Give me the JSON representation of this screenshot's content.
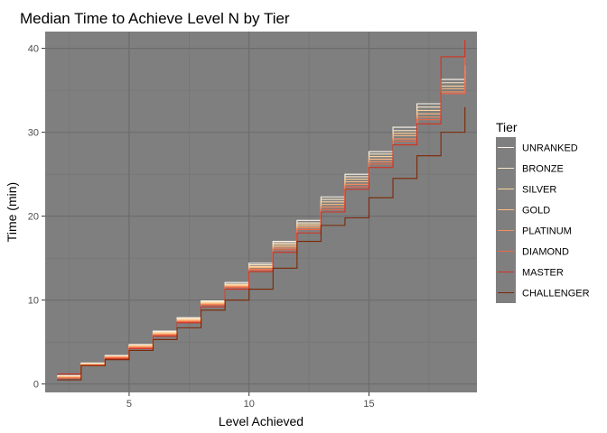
{
  "chart_data": {
    "type": "line",
    "subtype": "step",
    "title": "Median Time to Achieve Level N by Tier",
    "xlabel": "Level Achieved",
    "ylabel": "Time (min)",
    "xlim": [
      1.5,
      19.5
    ],
    "ylim": [
      -1,
      42
    ],
    "x_ticks": [
      5,
      10,
      15
    ],
    "y_ticks": [
      0,
      10,
      20,
      30,
      40
    ],
    "x_levels": [
      2,
      3,
      4,
      5,
      6,
      7,
      8,
      9,
      10,
      11,
      12,
      13,
      14,
      15,
      16,
      17,
      18,
      19
    ],
    "background": "#7f7f7f",
    "legend": {
      "title": "Tier",
      "position": "right"
    },
    "series": [
      {
        "name": "UNRANKED",
        "color": "#fff7ec",
        "values": [
          1.0,
          2.5,
          3.4,
          4.7,
          6.3,
          7.9,
          9.9,
          12.1,
          14.4,
          17.0,
          19.5,
          22.3,
          25.0,
          27.7,
          30.6,
          33.4,
          36.3,
          38.0
        ]
      },
      {
        "name": "BRONZE",
        "color": "#fee8c8",
        "values": [
          0.9,
          2.4,
          3.3,
          4.6,
          6.2,
          7.8,
          9.8,
          11.9,
          14.2,
          16.8,
          19.2,
          22.0,
          24.7,
          27.4,
          30.2,
          33.0,
          35.9,
          37.5
        ]
      },
      {
        "name": "SILVER",
        "color": "#fdd49e",
        "values": [
          0.9,
          2.4,
          3.3,
          4.6,
          6.1,
          7.7,
          9.7,
          11.8,
          14.0,
          16.6,
          19.0,
          21.7,
          24.4,
          27.1,
          29.9,
          32.6,
          35.5,
          37.0
        ]
      },
      {
        "name": "GOLD",
        "color": "#fdbb84",
        "values": [
          0.8,
          2.3,
          3.2,
          4.5,
          6.0,
          7.6,
          9.6,
          11.7,
          13.9,
          16.4,
          18.8,
          21.4,
          24.1,
          26.8,
          29.6,
          32.2,
          35.2,
          36.5
        ]
      },
      {
        "name": "PLATINUM",
        "color": "#fc8d59",
        "values": [
          0.8,
          2.3,
          3.2,
          4.4,
          5.9,
          7.5,
          9.5,
          11.6,
          13.7,
          16.2,
          18.6,
          21.1,
          23.8,
          26.5,
          29.2,
          31.8,
          34.8,
          36.0
        ]
      },
      {
        "name": "DIAMOND",
        "color": "#ef6548",
        "values": [
          0.7,
          2.2,
          3.1,
          4.3,
          5.8,
          7.4,
          9.4,
          11.5,
          13.6,
          16.0,
          18.4,
          20.8,
          23.5,
          26.2,
          28.9,
          31.5,
          34.6,
          39.0
        ]
      },
      {
        "name": "MASTER",
        "color": "#d7301f",
        "values": [
          1.2,
          2.2,
          3.0,
          4.2,
          5.7,
          7.3,
          9.2,
          11.3,
          13.4,
          15.7,
          18.0,
          20.5,
          23.2,
          25.8,
          28.5,
          31.0,
          39.0,
          41.0
        ]
      },
      {
        "name": "CHALLENGER",
        "color": "#7f2704",
        "values": [
          0.5,
          2.2,
          2.9,
          4.0,
          5.3,
          6.7,
          8.8,
          10.0,
          11.3,
          13.8,
          17.0,
          18.9,
          19.8,
          22.2,
          24.5,
          27.2,
          30.0,
          33.0
        ]
      }
    ]
  }
}
